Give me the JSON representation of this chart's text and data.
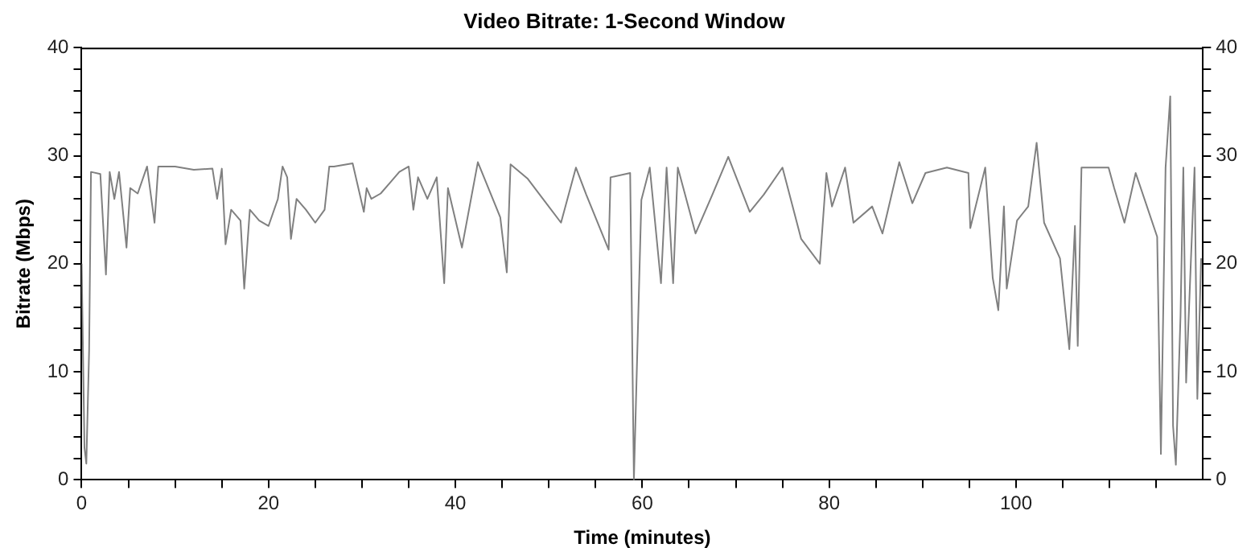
{
  "chart_data": {
    "type": "line",
    "title": "Video Bitrate: 1-Second Window",
    "xlabel": "Time (minutes)",
    "ylabel": "Bitrate (Mbps)",
    "xlim": [
      0,
      120
    ],
    "xticks": [
      0,
      {
        "value": 5,
        "label": null
      },
      {
        "value": 10,
        "label": null
      },
      {
        "value": 15,
        "label": null
      },
      20,
      {
        "value": 25,
        "label": null
      },
      {
        "value": 30,
        "label": null
      },
      {
        "value": 35,
        "label": null
      },
      40,
      {
        "value": 45,
        "label": null
      },
      {
        "value": 50,
        "label": null
      },
      {
        "value": 55,
        "label": null
      },
      60,
      {
        "value": 65,
        "label": null
      },
      {
        "value": 70,
        "label": null
      },
      {
        "value": 75,
        "label": null
      },
      80,
      {
        "value": 85,
        "label": null
      },
      {
        "value": 90,
        "label": null
      },
      {
        "value": 95,
        "label": null
      },
      100,
      {
        "value": 105,
        "label": null
      },
      {
        "value": 110,
        "label": null
      },
      {
        "value": 115,
        "label": null
      }
    ],
    "ylim": [
      0,
      40
    ],
    "yticks": [
      0,
      {
        "value": 2,
        "label": null
      },
      {
        "value": 4,
        "label": null
      },
      {
        "value": 6,
        "label": null
      },
      {
        "value": 8,
        "label": null
      },
      10,
      {
        "value": 12,
        "label": null
      },
      {
        "value": 14,
        "label": null
      },
      {
        "value": 16,
        "label": null
      },
      {
        "value": 18,
        "label": null
      },
      20,
      {
        "value": 22,
        "label": null
      },
      {
        "value": 24,
        "label": null
      },
      {
        "value": 26,
        "label": null
      },
      {
        "value": 28,
        "label": null
      },
      30,
      {
        "value": 32,
        "label": null
      },
      {
        "value": 34,
        "label": null
      },
      {
        "value": 36,
        "label": null
      },
      {
        "value": 38,
        "label": null
      },
      40
    ],
    "y2lim": [
      0,
      40
    ],
    "y2ticks": [
      0,
      {
        "value": 2,
        "label": null
      },
      {
        "value": 4,
        "label": null
      },
      {
        "value": 6,
        "label": null
      },
      {
        "value": 8,
        "label": null
      },
      10,
      {
        "value": 12,
        "label": null
      },
      {
        "value": 14,
        "label": null
      },
      {
        "value": 16,
        "label": null
      },
      {
        "value": 18,
        "label": null
      },
      20,
      {
        "value": 22,
        "label": null
      },
      {
        "value": 24,
        "label": null
      },
      {
        "value": 26,
        "label": null
      },
      {
        "value": 28,
        "label": null
      },
      30,
      {
        "value": 32,
        "label": null
      },
      {
        "value": 34,
        "label": null
      },
      {
        "value": 36,
        "label": null
      },
      {
        "value": 38,
        "label": null
      },
      40
    ],
    "grid": false,
    "legend": false,
    "marker": "none",
    "line_style": "solid",
    "series": [
      {
        "color": "#808080",
        "x": [
          0,
          0.3,
          0.5,
          0.8,
          1,
          2,
          2.6,
          3,
          3.5,
          4,
          4.8,
          5.2,
          6,
          7,
          7.8,
          8.2,
          10,
          12,
          14,
          14.5,
          15,
          15.4,
          16,
          17,
          17.4,
          18,
          19,
          20,
          21,
          21.5,
          22,
          22.4,
          23,
          24,
          25,
          26,
          26.5,
          27,
          29,
          30.2,
          30.5,
          31,
          32,
          33,
          34,
          35,
          35.5,
          36,
          37,
          38,
          38.8,
          39.2,
          40.7,
          42.4,
          44.8,
          45.5,
          45.9,
          47.7,
          51.3,
          52.9,
          54,
          56.4,
          56.6,
          58.7,
          59.1,
          59.9,
          60.8,
          62,
          62.6,
          63.3,
          63.8,
          65.7,
          67.5,
          69.2,
          71.5,
          73,
          75,
          77,
          79,
          79.7,
          80.3,
          81.7,
          82.6,
          84.6,
          85.7,
          87.5,
          88.9,
          90.3,
          92.6,
          94.9,
          95.1,
          96.7,
          97.5,
          98.1,
          98.7,
          99,
          100.1,
          101.3,
          102.2,
          103,
          104.7,
          105.7,
          106.3,
          106.6,
          107,
          109.9,
          110.5,
          111.6,
          112.8,
          115.1,
          115.5,
          116,
          116.5,
          116.8,
          117.1,
          117.6,
          117.9,
          118.2,
          119.1,
          119.4,
          119.8
        ],
        "values": [
          20,
          3,
          1.5,
          12,
          28.5,
          28.3,
          19,
          28.5,
          26,
          28.5,
          21.5,
          27,
          26.5,
          29,
          23.8,
          29,
          29,
          28.7,
          28.8,
          26,
          28.8,
          21.8,
          25,
          24,
          17.7,
          25,
          24,
          23.5,
          26,
          29,
          28,
          22.3,
          26,
          25,
          23.8,
          25,
          29,
          29,
          29.3,
          24.8,
          27,
          26,
          26.5,
          27.5,
          28.5,
          29,
          25,
          28,
          26,
          28,
          18.2,
          27,
          21.5,
          29.4,
          24.3,
          19.2,
          29.2,
          27.9,
          23.8,
          28.9,
          26.4,
          21.3,
          28,
          28.4,
          0,
          25.9,
          28.9,
          18.2,
          28.9,
          18.2,
          28.9,
          22.8,
          26.4,
          29.9,
          24.8,
          26.4,
          28.9,
          22.3,
          20,
          28.4,
          25.3,
          28.9,
          23.8,
          25.3,
          22.8,
          29.4,
          25.6,
          28.4,
          28.9,
          28.4,
          23.3,
          28.9,
          18.7,
          15.7,
          25.3,
          17.7,
          24,
          25.3,
          31.2,
          23.8,
          20.5,
          12.1,
          23.5,
          12.4,
          28.9,
          28.9,
          27,
          23.8,
          28.4,
          22.5,
          2.4,
          28.9,
          35.5,
          5,
          1.4,
          15.2,
          28.9,
          9,
          28.9,
          7.5,
          20.5
        ]
      }
    ]
  }
}
